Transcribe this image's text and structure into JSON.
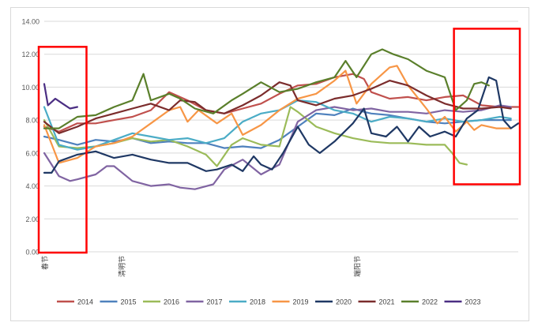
{
  "chart_data": {
    "type": "line",
    "title": "",
    "xlabel": "",
    "ylabel": "",
    "ylim": [
      0,
      14
    ],
    "yticks": [
      "0.00",
      "2.00",
      "4.00",
      "6.00",
      "8.00",
      "10.00",
      "12.00",
      "14.00"
    ],
    "x_day_range": [
      1,
      130
    ],
    "x_annotations": [
      {
        "label": "春节",
        "day": 1
      },
      {
        "label": "清明节",
        "day": 22
      },
      {
        "label": "端阳节",
        "day": 86
      }
    ],
    "grid": true,
    "legend_position": "bottom",
    "highlight_boxes": "two red rectangles: around early days (Spring Festival period) and around late days (end of series)",
    "series": [
      {
        "name": "2014",
        "color": "#c0504d",
        "points": [
          [
            1,
            7.6
          ],
          [
            5,
            7.3
          ],
          [
            10,
            7.8
          ],
          [
            15,
            7.8
          ],
          [
            20,
            8.0
          ],
          [
            25,
            8.2
          ],
          [
            30,
            8.6
          ],
          [
            35,
            9.7
          ],
          [
            40,
            9.2
          ],
          [
            45,
            8.6
          ],
          [
            50,
            8.4
          ],
          [
            55,
            8.7
          ],
          [
            60,
            9.0
          ],
          [
            65,
            9.6
          ],
          [
            70,
            10.1
          ],
          [
            75,
            10.2
          ],
          [
            80,
            10.6
          ],
          [
            85,
            10.8
          ],
          [
            88,
            10.5
          ],
          [
            90,
            9.7
          ],
          [
            95,
            9.3
          ],
          [
            100,
            9.4
          ],
          [
            105,
            9.2
          ],
          [
            110,
            9.4
          ],
          [
            115,
            9.5
          ],
          [
            120,
            8.9
          ],
          [
            125,
            8.8
          ],
          [
            130,
            8.8
          ]
        ]
      },
      {
        "name": "2015",
        "color": "#4f81bd",
        "points": [
          [
            1,
            7.0
          ],
          [
            5,
            6.8
          ],
          [
            10,
            6.5
          ],
          [
            15,
            6.8
          ],
          [
            20,
            6.7
          ],
          [
            25,
            6.9
          ],
          [
            30,
            6.6
          ],
          [
            35,
            6.7
          ],
          [
            40,
            6.6
          ],
          [
            45,
            6.6
          ],
          [
            50,
            6.3
          ],
          [
            55,
            6.4
          ],
          [
            60,
            6.3
          ],
          [
            65,
            6.8
          ],
          [
            70,
            7.6
          ],
          [
            75,
            8.4
          ],
          [
            80,
            8.3
          ],
          [
            85,
            8.7
          ],
          [
            88,
            8.5
          ],
          [
            90,
            8.4
          ],
          [
            95,
            8.3
          ],
          [
            100,
            8.1
          ],
          [
            105,
            7.9
          ],
          [
            110,
            7.8
          ],
          [
            115,
            7.9
          ],
          [
            120,
            8.0
          ],
          [
            125,
            8.0
          ],
          [
            128,
            8.0
          ]
        ]
      },
      {
        "name": "2016",
        "color": "#9bbb59",
        "points": [
          [
            1,
            8.0
          ],
          [
            5,
            6.4
          ],
          [
            10,
            6.3
          ],
          [
            15,
            6.4
          ],
          [
            20,
            6.6
          ],
          [
            25,
            6.9
          ],
          [
            30,
            6.7
          ],
          [
            35,
            6.8
          ],
          [
            40,
            6.4
          ],
          [
            45,
            5.9
          ],
          [
            48,
            5.2
          ],
          [
            52,
            6.5
          ],
          [
            55,
            6.9
          ],
          [
            60,
            6.5
          ],
          [
            65,
            6.4
          ],
          [
            68,
            8.8
          ],
          [
            70,
            8.5
          ],
          [
            75,
            7.6
          ],
          [
            80,
            7.2
          ],
          [
            85,
            6.9
          ],
          [
            90,
            6.7
          ],
          [
            95,
            6.6
          ],
          [
            100,
            6.6
          ],
          [
            105,
            6.5
          ],
          [
            110,
            6.5
          ],
          [
            112,
            6.0
          ],
          [
            114,
            5.4
          ],
          [
            116,
            5.3
          ]
        ]
      },
      {
        "name": "2017",
        "color": "#8064a2",
        "points": [
          [
            1,
            6.0
          ],
          [
            5,
            4.6
          ],
          [
            8,
            4.3
          ],
          [
            10,
            4.4
          ],
          [
            15,
            4.7
          ],
          [
            18,
            5.2
          ],
          [
            20,
            5.2
          ],
          [
            25,
            4.3
          ],
          [
            30,
            4.0
          ],
          [
            35,
            4.1
          ],
          [
            38,
            3.9
          ],
          [
            42,
            3.8
          ],
          [
            47,
            4.1
          ],
          [
            50,
            5.0
          ],
          [
            55,
            5.6
          ],
          [
            60,
            4.7
          ],
          [
            65,
            5.3
          ],
          [
            70,
            7.9
          ],
          [
            75,
            8.6
          ],
          [
            80,
            8.8
          ],
          [
            85,
            8.6
          ],
          [
            90,
            8.7
          ],
          [
            95,
            8.5
          ],
          [
            100,
            8.5
          ],
          [
            105,
            8.4
          ],
          [
            110,
            8.6
          ],
          [
            115,
            8.5
          ],
          [
            120,
            8.6
          ],
          [
            125,
            8.9
          ],
          [
            128,
            8.8
          ]
        ]
      },
      {
        "name": "2018",
        "color": "#4bacc6",
        "points": [
          [
            1,
            8.8
          ],
          [
            5,
            6.5
          ],
          [
            10,
            6.2
          ],
          [
            15,
            6.4
          ],
          [
            20,
            6.8
          ],
          [
            25,
            7.2
          ],
          [
            30,
            7.0
          ],
          [
            35,
            6.8
          ],
          [
            40,
            6.9
          ],
          [
            45,
            6.6
          ],
          [
            50,
            6.9
          ],
          [
            55,
            7.9
          ],
          [
            60,
            8.4
          ],
          [
            65,
            8.6
          ],
          [
            70,
            9.2
          ],
          [
            75,
            9.1
          ],
          [
            80,
            8.6
          ],
          [
            85,
            8.4
          ],
          [
            90,
            7.9
          ],
          [
            95,
            8.2
          ],
          [
            100,
            8.1
          ],
          [
            105,
            7.9
          ],
          [
            110,
            8.1
          ],
          [
            115,
            7.9
          ],
          [
            120,
            8.0
          ],
          [
            125,
            8.2
          ],
          [
            128,
            8.1
          ]
        ]
      },
      {
        "name": "2019",
        "color": "#f79646",
        "points": [
          [
            1,
            7.7
          ],
          [
            5,
            5.4
          ],
          [
            10,
            5.7
          ],
          [
            15,
            6.4
          ],
          [
            20,
            6.6
          ],
          [
            25,
            7.0
          ],
          [
            30,
            7.8
          ],
          [
            35,
            8.6
          ],
          [
            38,
            8.8
          ],
          [
            40,
            7.9
          ],
          [
            43,
            8.6
          ],
          [
            48,
            7.8
          ],
          [
            52,
            8.4
          ],
          [
            55,
            7.1
          ],
          [
            60,
            7.7
          ],
          [
            65,
            8.6
          ],
          [
            70,
            9.3
          ],
          [
            75,
            9.6
          ],
          [
            80,
            10.4
          ],
          [
            83,
            11.0
          ],
          [
            86,
            9.0
          ],
          [
            90,
            10.2
          ],
          [
            95,
            11.2
          ],
          [
            97,
            11.3
          ],
          [
            100,
            10.1
          ],
          [
            105,
            8.7
          ],
          [
            108,
            7.8
          ],
          [
            110,
            8.2
          ],
          [
            113,
            7.3
          ],
          [
            116,
            7.9
          ],
          [
            118,
            7.4
          ],
          [
            120,
            7.7
          ],
          [
            124,
            7.5
          ],
          [
            128,
            7.5
          ]
        ]
      },
      {
        "name": "2020",
        "color": "#1f3864",
        "points": [
          [
            1,
            4.8
          ],
          [
            3,
            4.8
          ],
          [
            5,
            5.5
          ],
          [
            10,
            5.9
          ],
          [
            15,
            6.1
          ],
          [
            20,
            5.7
          ],
          [
            25,
            5.9
          ],
          [
            30,
            5.6
          ],
          [
            35,
            5.4
          ],
          [
            40,
            5.4
          ],
          [
            45,
            4.9
          ],
          [
            48,
            5.0
          ],
          [
            52,
            5.3
          ],
          [
            55,
            4.9
          ],
          [
            58,
            5.8
          ],
          [
            60,
            5.3
          ],
          [
            63,
            5.0
          ],
          [
            66,
            6.0
          ],
          [
            70,
            7.6
          ],
          [
            73,
            6.5
          ],
          [
            76,
            6.0
          ],
          [
            80,
            6.7
          ],
          [
            85,
            7.8
          ],
          [
            88,
            8.7
          ],
          [
            90,
            7.2
          ],
          [
            94,
            7.0
          ],
          [
            97,
            7.6
          ],
          [
            100,
            6.7
          ],
          [
            103,
            7.6
          ],
          [
            106,
            7.0
          ],
          [
            110,
            7.3
          ],
          [
            113,
            7.0
          ],
          [
            116,
            8.1
          ],
          [
            119,
            8.6
          ],
          [
            122,
            10.6
          ],
          [
            124,
            10.4
          ],
          [
            126,
            8.0
          ],
          [
            128,
            7.5
          ],
          [
            130,
            7.8
          ]
        ]
      },
      {
        "name": "2021",
        "color": "#7b2c2c",
        "points": [
          [
            1,
            7.9
          ],
          [
            5,
            7.2
          ],
          [
            10,
            7.6
          ],
          [
            15,
            8.1
          ],
          [
            20,
            8.4
          ],
          [
            25,
            8.7
          ],
          [
            30,
            9.0
          ],
          [
            35,
            8.6
          ],
          [
            38,
            9.2
          ],
          [
            42,
            9.1
          ],
          [
            45,
            8.6
          ],
          [
            50,
            8.4
          ],
          [
            55,
            8.9
          ],
          [
            60,
            9.5
          ],
          [
            65,
            10.3
          ],
          [
            68,
            10.1
          ],
          [
            70,
            9.2
          ],
          [
            75,
            8.9
          ],
          [
            80,
            9.3
          ],
          [
            85,
            9.5
          ],
          [
            90,
            9.9
          ],
          [
            95,
            10.4
          ],
          [
            100,
            10.1
          ],
          [
            105,
            9.5
          ],
          [
            110,
            9.0
          ],
          [
            115,
            8.7
          ],
          [
            120,
            8.7
          ],
          [
            125,
            8.8
          ],
          [
            128,
            8.7
          ]
        ]
      },
      {
        "name": "2022",
        "color": "#5a7f2b",
        "points": [
          [
            1,
            7.5
          ],
          [
            5,
            7.5
          ],
          [
            10,
            8.2
          ],
          [
            15,
            8.3
          ],
          [
            20,
            8.8
          ],
          [
            25,
            9.2
          ],
          [
            28,
            10.8
          ],
          [
            30,
            9.2
          ],
          [
            35,
            9.6
          ],
          [
            38,
            9.3
          ],
          [
            42,
            8.7
          ],
          [
            47,
            8.4
          ],
          [
            52,
            9.2
          ],
          [
            55,
            9.6
          ],
          [
            60,
            10.3
          ],
          [
            65,
            9.7
          ],
          [
            70,
            9.9
          ],
          [
            75,
            10.3
          ],
          [
            80,
            10.6
          ],
          [
            83,
            11.6
          ],
          [
            86,
            10.6
          ],
          [
            90,
            12.0
          ],
          [
            93,
            12.3
          ],
          [
            96,
            12.0
          ],
          [
            100,
            11.7
          ],
          [
            105,
            11.0
          ],
          [
            110,
            10.6
          ],
          [
            113,
            8.6
          ],
          [
            116,
            9.2
          ],
          [
            118,
            10.2
          ],
          [
            120,
            10.3
          ],
          [
            122,
            10.1
          ]
        ]
      },
      {
        "name": "2023",
        "color": "#4b2e83",
        "points": [
          [
            1,
            10.2
          ],
          [
            2,
            8.9
          ],
          [
            4,
            9.3
          ],
          [
            6,
            9.0
          ],
          [
            8,
            8.7
          ],
          [
            10,
            8.8
          ]
        ]
      }
    ]
  }
}
